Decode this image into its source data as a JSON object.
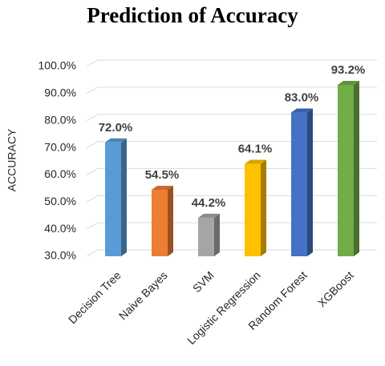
{
  "chart_data": {
    "type": "bar3d",
    "title": "Prediction of Accuracy",
    "y_label": "ACCURACY",
    "categories": [
      "Decision Tree",
      "Naive Bayes",
      "SVM",
      "Logistic Regression",
      "Random Forest",
      "XGBoost"
    ],
    "values": [
      72.0,
      54.5,
      44.2,
      64.1,
      83.0,
      93.2
    ],
    "value_labels": [
      "72.0%",
      "54.5%",
      "44.2%",
      "64.1%",
      "83.0%",
      "93.2%"
    ],
    "colors": [
      "#5b9bd5",
      "#ed7d31",
      "#a5a5a5",
      "#ffc000",
      "#4472c4",
      "#70ad47"
    ],
    "ylim": [
      30,
      100
    ],
    "yticks": [
      {
        "value": 30,
        "label": "30.0%"
      },
      {
        "value": 40,
        "label": "40.0%"
      },
      {
        "value": 50,
        "label": "50.0%"
      },
      {
        "value": 60,
        "label": "60.0%"
      },
      {
        "value": 70,
        "label": "70.0%"
      },
      {
        "value": 80,
        "label": "80.0%"
      },
      {
        "value": 90,
        "label": "90.0%"
      },
      {
        "value": 100,
        "label": "100.0%"
      }
    ],
    "grid": true
  }
}
